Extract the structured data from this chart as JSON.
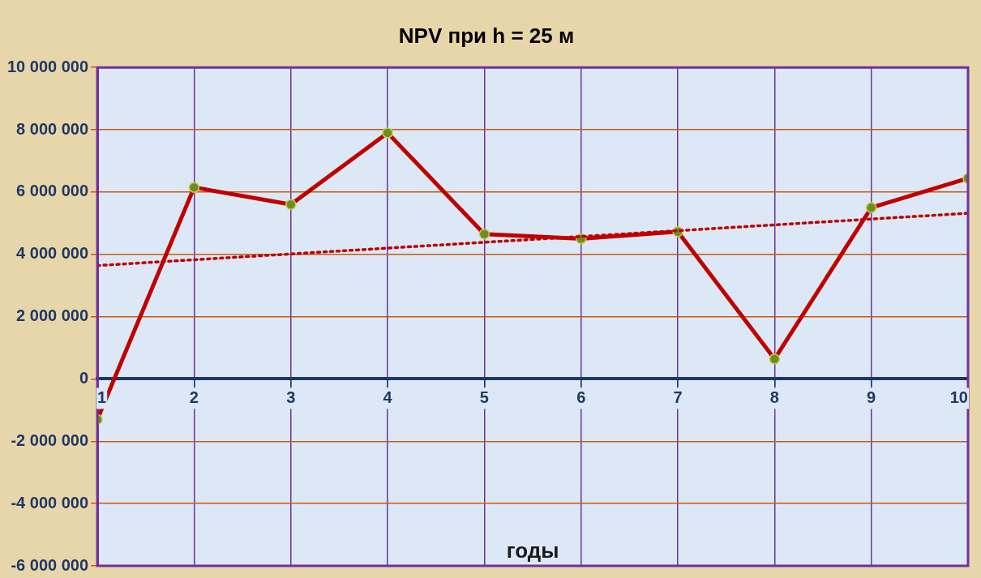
{
  "chart_data": {
    "type": "line",
    "title": "NPV при h = 25 м",
    "xlabel": "годы",
    "x": [
      1,
      2,
      3,
      4,
      5,
      6,
      7,
      8,
      9,
      10
    ],
    "series": [
      {
        "type": "line",
        "color": "#c00000",
        "marker": "circle",
        "line_style": "solid",
        "values": [
          -1300000,
          6150000,
          5600000,
          7900000,
          4650000,
          4500000,
          4730000,
          640000,
          5500000,
          6440000
        ]
      },
      {
        "type": "line",
        "color": "#c00000",
        "marker": "none",
        "line_style": "dotted",
        "x": [
          1,
          10
        ],
        "values": [
          3640000,
          5320000
        ]
      }
    ],
    "xlim": [
      1,
      10
    ],
    "xticks": [
      1,
      2,
      3,
      4,
      5,
      6,
      7,
      8,
      9,
      10
    ],
    "ylim": [
      -6000000,
      10000000
    ],
    "yticks": [
      {
        "value": -6000000,
        "label": "-6 000 000"
      },
      {
        "value": -4000000,
        "label": "-4 000 000"
      },
      {
        "value": -2000000,
        "label": "-2 000 000"
      },
      {
        "value": 0,
        "label": "0"
      },
      {
        "value": 2000000,
        "label": "2 000 000"
      },
      {
        "value": 4000000,
        "label": "4 000 000"
      },
      {
        "value": 6000000,
        "label": "6 000 000"
      },
      {
        "value": 8000000,
        "label": "8 000 000"
      },
      {
        "value": 10000000,
        "label": "10 000 000"
      }
    ],
    "grid": true,
    "legend": false
  }
}
